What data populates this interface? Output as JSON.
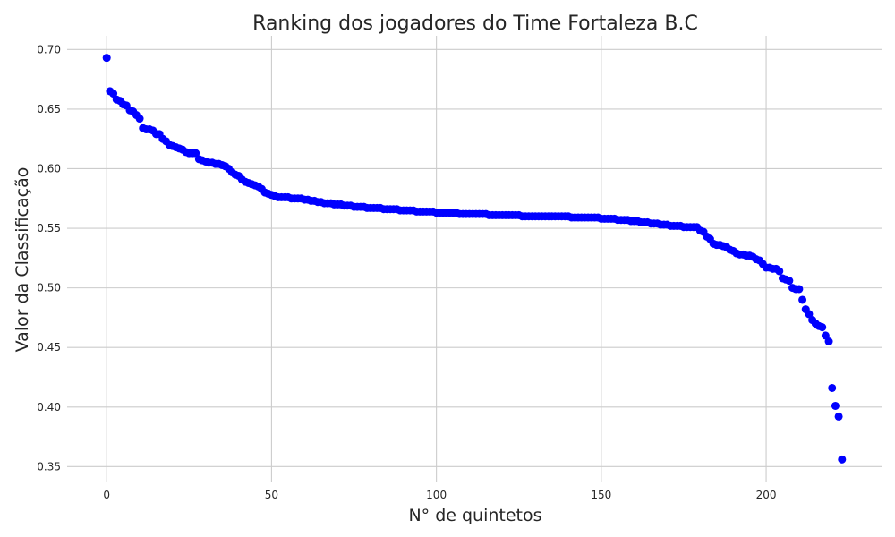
{
  "chart_data": {
    "type": "scatter",
    "title": "Ranking dos jogadores do Time Fortaleza B.C",
    "xlabel": "N° de quintetos",
    "ylabel": "Valor da Classificação",
    "xlim": [
      -12,
      235
    ],
    "ylim": [
      0.3375,
      0.7115
    ],
    "xticks": [
      0,
      50,
      100,
      150,
      200
    ],
    "xtick_labels": [
      "0",
      "50",
      "100",
      "150",
      "200"
    ],
    "yticks": [
      0.35,
      0.4,
      0.45,
      0.5,
      0.55,
      0.6,
      0.65,
      0.7
    ],
    "ytick_labels": [
      "0.35",
      "0.40",
      "0.45",
      "0.50",
      "0.55",
      "0.60",
      "0.65",
      "0.70"
    ],
    "grid": true,
    "marker_color": "#0000ff",
    "x": [
      0,
      1,
      2,
      3,
      4,
      5,
      6,
      7,
      8,
      9,
      10,
      11,
      12,
      13,
      14,
      15,
      16,
      17,
      18,
      19,
      20,
      21,
      22,
      23,
      24,
      25,
      26,
      27,
      28,
      29,
      30,
      31,
      32,
      33,
      34,
      35,
      36,
      37,
      38,
      39,
      40,
      41,
      42,
      43,
      44,
      45,
      46,
      47,
      48,
      49,
      50,
      51,
      52,
      53,
      54,
      55,
      56,
      57,
      58,
      59,
      60,
      61,
      62,
      63,
      64,
      65,
      66,
      67,
      68,
      69,
      70,
      71,
      72,
      73,
      74,
      75,
      76,
      77,
      78,
      79,
      80,
      81,
      82,
      83,
      84,
      85,
      86,
      87,
      88,
      89,
      90,
      91,
      92,
      93,
      94,
      95,
      96,
      97,
      98,
      99,
      100,
      101,
      102,
      103,
      104,
      105,
      106,
      107,
      108,
      109,
      110,
      111,
      112,
      113,
      114,
      115,
      116,
      117,
      118,
      119,
      120,
      121,
      122,
      123,
      124,
      125,
      126,
      127,
      128,
      129,
      130,
      131,
      132,
      133,
      134,
      135,
      136,
      137,
      138,
      139,
      140,
      141,
      142,
      143,
      144,
      145,
      146,
      147,
      148,
      149,
      150,
      151,
      152,
      153,
      154,
      155,
      156,
      157,
      158,
      159,
      160,
      161,
      162,
      163,
      164,
      165,
      166,
      167,
      168,
      169,
      170,
      171,
      172,
      173,
      174,
      175,
      176,
      177,
      178,
      179,
      180,
      181,
      182,
      183,
      184,
      185,
      186,
      187,
      188,
      189,
      190,
      191,
      192,
      193,
      194,
      195,
      196,
      197,
      198,
      199,
      200,
      201,
      202,
      203,
      204,
      205,
      206,
      207,
      208,
      209,
      210,
      211,
      212,
      213,
      214,
      215,
      216,
      217,
      218,
      219,
      220,
      221,
      222,
      223
    ],
    "y": [
      0.693,
      0.665,
      0.663,
      0.658,
      0.657,
      0.654,
      0.653,
      0.649,
      0.648,
      0.645,
      0.642,
      0.634,
      0.633,
      0.633,
      0.632,
      0.629,
      0.629,
      0.625,
      0.623,
      0.62,
      0.619,
      0.618,
      0.617,
      0.616,
      0.614,
      0.613,
      0.613,
      0.613,
      0.608,
      0.607,
      0.606,
      0.605,
      0.605,
      0.604,
      0.604,
      0.603,
      0.602,
      0.6,
      0.597,
      0.595,
      0.594,
      0.591,
      0.589,
      0.588,
      0.587,
      0.586,
      0.585,
      0.583,
      0.58,
      0.579,
      0.578,
      0.577,
      0.576,
      0.576,
      0.576,
      0.576,
      0.575,
      0.575,
      0.575,
      0.575,
      0.574,
      0.574,
      0.573,
      0.573,
      0.572,
      0.572,
      0.571,
      0.571,
      0.571,
      0.57,
      0.57,
      0.57,
      0.569,
      0.569,
      0.569,
      0.568,
      0.568,
      0.568,
      0.568,
      0.567,
      0.567,
      0.567,
      0.567,
      0.567,
      0.566,
      0.566,
      0.566,
      0.566,
      0.566,
      0.565,
      0.565,
      0.565,
      0.565,
      0.565,
      0.564,
      0.564,
      0.564,
      0.564,
      0.564,
      0.564,
      0.563,
      0.563,
      0.563,
      0.563,
      0.563,
      0.563,
      0.563,
      0.562,
      0.562,
      0.562,
      0.562,
      0.562,
      0.562,
      0.562,
      0.562,
      0.562,
      0.561,
      0.561,
      0.561,
      0.561,
      0.561,
      0.561,
      0.561,
      0.561,
      0.561,
      0.561,
      0.56,
      0.56,
      0.56,
      0.56,
      0.56,
      0.56,
      0.56,
      0.56,
      0.56,
      0.56,
      0.56,
      0.56,
      0.56,
      0.56,
      0.56,
      0.559,
      0.559,
      0.559,
      0.559,
      0.559,
      0.559,
      0.559,
      0.559,
      0.559,
      0.558,
      0.558,
      0.558,
      0.558,
      0.558,
      0.557,
      0.557,
      0.557,
      0.557,
      0.556,
      0.556,
      0.556,
      0.555,
      0.555,
      0.555,
      0.554,
      0.554,
      0.554,
      0.553,
      0.553,
      0.553,
      0.552,
      0.552,
      0.552,
      0.552,
      0.551,
      0.551,
      0.551,
      0.551,
      0.551,
      0.548,
      0.547,
      0.543,
      0.541,
      0.537,
      0.536,
      0.536,
      0.535,
      0.534,
      0.532,
      0.531,
      0.529,
      0.528,
      0.528,
      0.527,
      0.527,
      0.526,
      0.524,
      0.523,
      0.52,
      0.517,
      0.517,
      0.516,
      0.516,
      0.514,
      0.508,
      0.507,
      0.506,
      0.5,
      0.499,
      0.499,
      0.49,
      0.482,
      0.478,
      0.473,
      0.47,
      0.468,
      0.467,
      0.46,
      0.455,
      0.416,
      0.401,
      0.392,
      0.356
    ]
  }
}
